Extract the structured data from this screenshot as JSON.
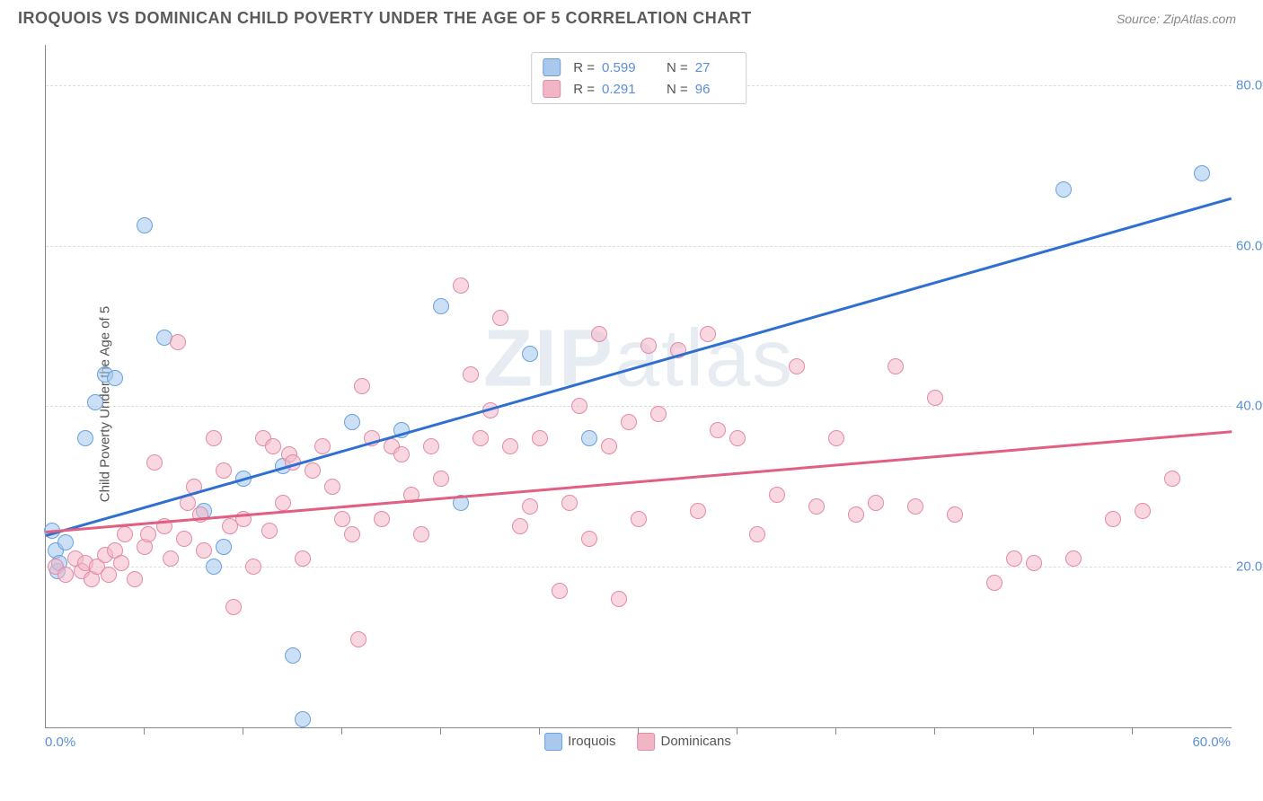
{
  "title": "IROQUOIS VS DOMINICAN CHILD POVERTY UNDER THE AGE OF 5 CORRELATION CHART",
  "source": "Source: ZipAtlas.com",
  "ylabel": "Child Poverty Under the Age of 5",
  "watermark_bold": "ZIP",
  "watermark_rest": "atlas",
  "xlim": [
    0,
    60
  ],
  "ylim": [
    0,
    85
  ],
  "y_ticks": [
    20,
    40,
    60,
    80
  ],
  "y_tick_labels": [
    "20.0%",
    "40.0%",
    "60.0%",
    "80.0%"
  ],
  "x_tick_marks": [
    5,
    10,
    15,
    20,
    25,
    30,
    35,
    40,
    45,
    50,
    55
  ],
  "x_end_labels": {
    "min": "0.0%",
    "max": "60.0%"
  },
  "grid_color": "#dddddd",
  "axis_color": "#888888",
  "tick_label_color": "#5b8fd6",
  "series": [
    {
      "name": "Iroquois",
      "point_stroke": "#6aa0df",
      "point_fill": "rgba(163,198,236,0.55)",
      "line_color": "#2e6fd1",
      "swatch_fill": "#a9c8ec",
      "swatch_border": "#6aa0df",
      "R": "0.599",
      "N": "27",
      "trend": {
        "x1": 0,
        "y1": 24,
        "x2": 60,
        "y2": 66
      },
      "points": [
        [
          0.3,
          24.5
        ],
        [
          0.5,
          22
        ],
        [
          0.6,
          19.5
        ],
        [
          0.7,
          20.5
        ],
        [
          1.0,
          23
        ],
        [
          2.0,
          36
        ],
        [
          2.5,
          40.5
        ],
        [
          3.0,
          44
        ],
        [
          3.5,
          43.5
        ],
        [
          5.0,
          62.5
        ],
        [
          6.0,
          48.5
        ],
        [
          8.0,
          27
        ],
        [
          8.5,
          20
        ],
        [
          9.0,
          22.5
        ],
        [
          10.0,
          31
        ],
        [
          12.5,
          9
        ],
        [
          13.0,
          1
        ],
        [
          12.0,
          32.5
        ],
        [
          15.5,
          38
        ],
        [
          18.0,
          37
        ],
        [
          20.0,
          52.5
        ],
        [
          21.0,
          28
        ],
        [
          24.5,
          46.5
        ],
        [
          27.5,
          36
        ],
        [
          51.5,
          67
        ],
        [
          58.5,
          69
        ]
      ]
    },
    {
      "name": "Dominicans",
      "point_stroke": "#e48aa5",
      "point_fill": "rgba(243,182,199,0.55)",
      "line_color": "#e15f82",
      "swatch_fill": "#f0b6c5",
      "swatch_border": "#e48aa5",
      "R": "0.291",
      "N": "96",
      "trend": {
        "x1": 0,
        "y1": 24.5,
        "x2": 60,
        "y2": 37
      },
      "points": [
        [
          0.5,
          20
        ],
        [
          1,
          19
        ],
        [
          1.5,
          21
        ],
        [
          1.8,
          19.5
        ],
        [
          2,
          20.5
        ],
        [
          2.3,
          18.5
        ],
        [
          2.6,
          20
        ],
        [
          3,
          21.5
        ],
        [
          3.2,
          19
        ],
        [
          3.5,
          22
        ],
        [
          3.8,
          20.5
        ],
        [
          4,
          24
        ],
        [
          4.5,
          18.5
        ],
        [
          5,
          22.5
        ],
        [
          5.2,
          24
        ],
        [
          5.5,
          33
        ],
        [
          6,
          25
        ],
        [
          6.3,
          21
        ],
        [
          6.7,
          48
        ],
        [
          7,
          23.5
        ],
        [
          7.2,
          28
        ],
        [
          7.5,
          30
        ],
        [
          7.8,
          26.5
        ],
        [
          8,
          22
        ],
        [
          8.5,
          36
        ],
        [
          9,
          32
        ],
        [
          9.3,
          25
        ],
        [
          9.5,
          15
        ],
        [
          10,
          26
        ],
        [
          10.5,
          20
        ],
        [
          11,
          36
        ],
        [
          11.3,
          24.5
        ],
        [
          11.5,
          35
        ],
        [
          12,
          28
        ],
        [
          12.3,
          34
        ],
        [
          12.5,
          33
        ],
        [
          13,
          21
        ],
        [
          13.5,
          32
        ],
        [
          14,
          35
        ],
        [
          14.5,
          30
        ],
        [
          15,
          26
        ],
        [
          15.5,
          24
        ],
        [
          15.8,
          11
        ],
        [
          16,
          42.5
        ],
        [
          16.5,
          36
        ],
        [
          17,
          26
        ],
        [
          17.5,
          35
        ],
        [
          18,
          34
        ],
        [
          18.5,
          29
        ],
        [
          19,
          24
        ],
        [
          19.5,
          35
        ],
        [
          20,
          31
        ],
        [
          21,
          55
        ],
        [
          21.5,
          44
        ],
        [
          22,
          36
        ],
        [
          22.5,
          39.5
        ],
        [
          23,
          51
        ],
        [
          23.5,
          35
        ],
        [
          24,
          25
        ],
        [
          24.5,
          27.5
        ],
        [
          25,
          36
        ],
        [
          26,
          17
        ],
        [
          26.5,
          28
        ],
        [
          27,
          40
        ],
        [
          27.5,
          23.5
        ],
        [
          28,
          49
        ],
        [
          28.5,
          35
        ],
        [
          29,
          16
        ],
        [
          29.5,
          38
        ],
        [
          30,
          26
        ],
        [
          30.5,
          47.5
        ],
        [
          31,
          39
        ],
        [
          32,
          47
        ],
        [
          33,
          27
        ],
        [
          33.5,
          49
        ],
        [
          34,
          37
        ],
        [
          35,
          36
        ],
        [
          36,
          24
        ],
        [
          37,
          29
        ],
        [
          38,
          45
        ],
        [
          39,
          27.5
        ],
        [
          40,
          36
        ],
        [
          41,
          26.5
        ],
        [
          42,
          28
        ],
        [
          43,
          45
        ],
        [
          44,
          27.5
        ],
        [
          45,
          41
        ],
        [
          46,
          26.5
        ],
        [
          48,
          18
        ],
        [
          49,
          21
        ],
        [
          50,
          20.5
        ],
        [
          52,
          21
        ],
        [
          54,
          26
        ],
        [
          55.5,
          27
        ],
        [
          57,
          31
        ]
      ]
    }
  ],
  "bottom_legend": {
    "s1": "Iroquois",
    "s2": "Dominicans"
  }
}
